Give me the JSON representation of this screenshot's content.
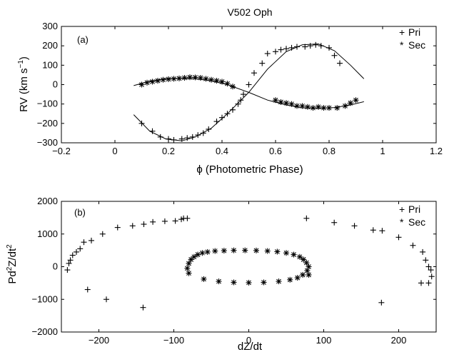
{
  "chart_data": [
    {
      "type": "scatter",
      "panel": "(a)",
      "title": "V502 Oph",
      "xlabel": "ϕ (Photometric Phase)",
      "ylabel": "RV (km s",
      "ylabel_sup": "−1",
      "ylabel_end": ")",
      "xlim": [
        -0.2,
        1.2
      ],
      "ylim": [
        -300,
        300
      ],
      "xticks": [
        -0.2,
        0,
        0.2,
        0.4,
        0.6,
        0.8,
        1,
        1.2
      ],
      "xtick_labels": [
        "−0.2",
        "0",
        "0.2",
        "0.4",
        "0.6",
        "0.8",
        "1",
        "1.2"
      ],
      "yticks": [
        -300,
        -200,
        -100,
        0,
        100,
        200,
        300
      ],
      "ytick_labels": [
        "−300",
        "−200",
        "−100",
        "0",
        "100",
        "200",
        "300"
      ],
      "legend": {
        "position": "top-right",
        "entries": [
          {
            "symbol": "+",
            "label": "Pri"
          },
          {
            "symbol": "*",
            "label": "Sec"
          }
        ]
      },
      "series": [
        {
          "name": "Pri",
          "marker": "+",
          "x": [
            0.1,
            0.14,
            0.17,
            0.2,
            0.22,
            0.25,
            0.27,
            0.29,
            0.31,
            0.33,
            0.35,
            0.38,
            0.4,
            0.42,
            0.44,
            0.46,
            0.47,
            0.48,
            0.5,
            0.52,
            0.55,
            0.57,
            0.6,
            0.62,
            0.64,
            0.66,
            0.68,
            0.71,
            0.73,
            0.75,
            0.77,
            0.8,
            0.82,
            0.84
          ],
          "y": [
            -200,
            -240,
            -270,
            -280,
            -285,
            -280,
            -275,
            -270,
            -260,
            -250,
            -230,
            -190,
            -170,
            -150,
            -130,
            -100,
            -80,
            -50,
            0,
            60,
            110,
            160,
            170,
            180,
            185,
            190,
            195,
            195,
            200,
            205,
            200,
            190,
            150,
            110
          ]
        },
        {
          "name": "Sec",
          "marker": "*",
          "x": [
            0.1,
            0.12,
            0.14,
            0.16,
            0.18,
            0.2,
            0.22,
            0.24,
            0.26,
            0.28,
            0.3,
            0.32,
            0.34,
            0.36,
            0.38,
            0.4,
            0.42,
            0.44,
            0.6,
            0.62,
            0.64,
            0.66,
            0.68,
            0.7,
            0.72,
            0.74,
            0.76,
            0.78,
            0.8,
            0.83,
            0.86,
            0.88,
            0.9
          ],
          "y": [
            0,
            10,
            15,
            20,
            25,
            28,
            30,
            32,
            35,
            38,
            37,
            35,
            30,
            25,
            20,
            15,
            5,
            -10,
            -80,
            -90,
            -95,
            -100,
            -110,
            -110,
            -115,
            -120,
            -115,
            -120,
            -120,
            -120,
            -110,
            -95,
            -80
          ]
        },
        {
          "name": "",
          "marker": "line",
          "x": [
            0.07,
            0.13,
            0.19,
            0.25,
            0.3,
            0.36,
            0.42,
            0.5,
            0.57,
            0.64,
            0.7,
            0.76,
            0.82,
            0.88,
            0.93
          ],
          "y": [
            -5,
            18,
            30,
            32,
            30,
            20,
            0,
            -40,
            -80,
            -105,
            -120,
            -123,
            -118,
            -105,
            -88
          ]
        },
        {
          "name": "",
          "marker": "line",
          "x": [
            0.07,
            0.13,
            0.19,
            0.25,
            0.3,
            0.36,
            0.42,
            0.5,
            0.57,
            0.64,
            0.7,
            0.76,
            0.82,
            0.88,
            0.93
          ],
          "y": [
            -155,
            -240,
            -280,
            -290,
            -270,
            -225,
            -150,
            -40,
            80,
            170,
            205,
            210,
            175,
            100,
            30
          ]
        }
      ]
    },
    {
      "type": "scatter",
      "panel": "(b)",
      "xlabel": "dZ/dt",
      "ylabel": "Pd",
      "ylabel_sup": "2",
      "ylabel_end": "Z/dt",
      "ylabel_sup2": "2",
      "xlim": [
        -250,
        250
      ],
      "ylim": [
        -2000,
        2000
      ],
      "xticks": [
        -200,
        -100,
        0,
        100,
        200
      ],
      "xtick_labels": [
        "−200",
        "−100",
        "0",
        "100",
        "200"
      ],
      "yticks": [
        -2000,
        -1000,
        0,
        1000,
        2000
      ],
      "ytick_labels": [
        "−2000",
        "−1000",
        "0",
        "1000",
        "2000"
      ],
      "legend": {
        "position": "top-right",
        "entries": [
          {
            "symbol": "+",
            "label": "Pri"
          },
          {
            "symbol": "*",
            "label": "Sec"
          }
        ]
      },
      "series": [
        {
          "name": "Pri",
          "marker": "+",
          "x": [
            -242,
            -240,
            -238,
            -235,
            -230,
            -225,
            -220,
            -210,
            -195,
            -175,
            -155,
            -140,
            -128,
            -112,
            -98,
            -90,
            -87,
            -82,
            77,
            114,
            141,
            166,
            178,
            200,
            219,
            232,
            236,
            240,
            243,
            244,
            240,
            -215,
            -190,
            -141,
            177,
            230
          ],
          "y": [
            -100,
            100,
            200,
            350,
            450,
            550,
            750,
            800,
            1000,
            1200,
            1250,
            1300,
            1370,
            1390,
            1400,
            1450,
            1480,
            1480,
            1480,
            1350,
            1250,
            1120,
            1100,
            900,
            650,
            450,
            200,
            0,
            -100,
            -300,
            -500,
            -700,
            -1000,
            -1250,
            -1100,
            -500
          ]
        },
        {
          "name": "Sec",
          "marker": "*",
          "x": [
            -82,
            -80,
            -77,
            -73,
            -68,
            -62,
            -55,
            -45,
            -33,
            -20,
            -5,
            10,
            25,
            38,
            50,
            60,
            68,
            73,
            77,
            80,
            -60,
            -40,
            -20,
            0,
            20,
            40,
            55,
            65,
            72,
            78,
            -80,
            80
          ],
          "y": [
            -50,
            100,
            220,
            300,
            370,
            420,
            450,
            480,
            490,
            500,
            500,
            495,
            480,
            460,
            420,
            370,
            300,
            220,
            120,
            0,
            -380,
            -450,
            -480,
            -490,
            -480,
            -450,
            -400,
            -340,
            -250,
            -120,
            -200,
            -250
          ]
        }
      ]
    }
  ]
}
